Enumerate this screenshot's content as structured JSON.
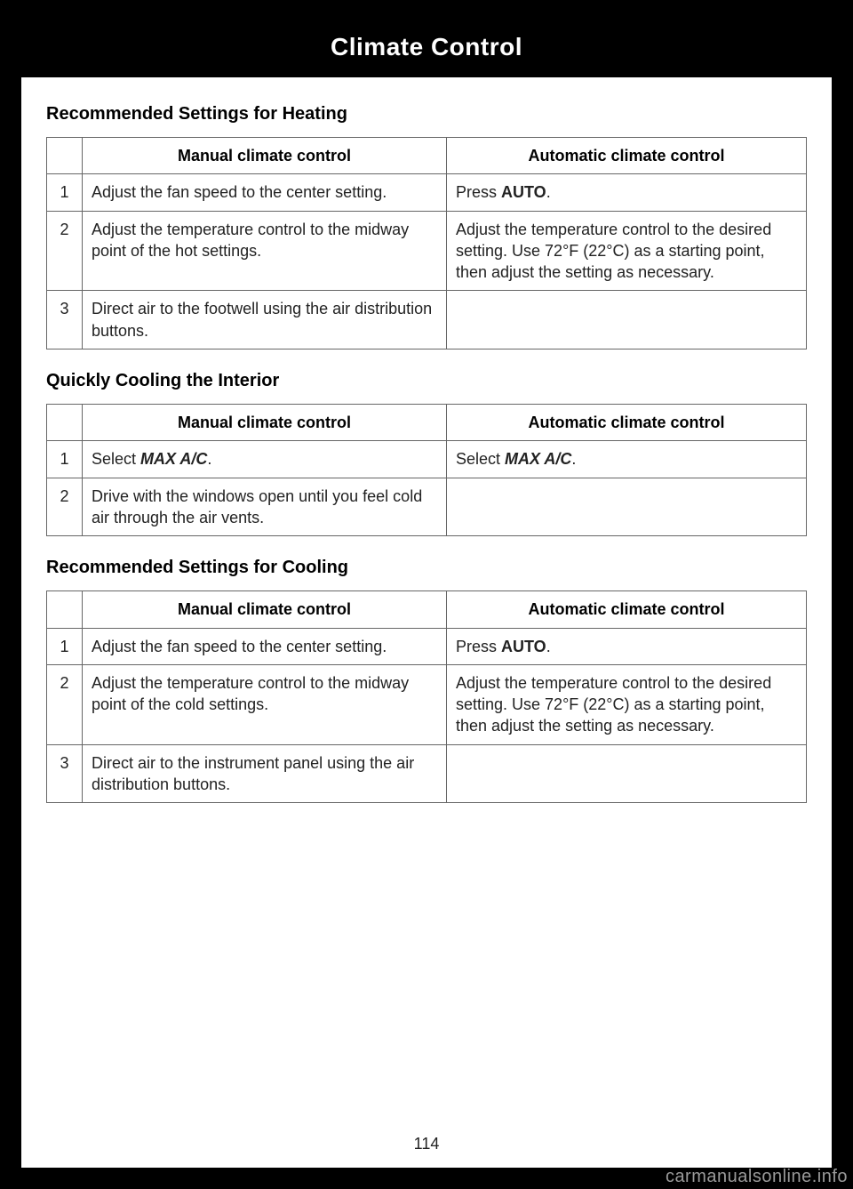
{
  "header": {
    "title": "Climate Control"
  },
  "page_number": "114",
  "watermark": "carmanualsonline.info",
  "columns": {
    "manual": "Manual climate control",
    "auto": "Automatic climate control"
  },
  "sections": [
    {
      "title": "Recommended Settings for Heating",
      "rows": [
        {
          "n": "1",
          "manual": "Adjust the fan speed to the center setting.",
          "auto_pre": "Press ",
          "auto_bold": "AUTO",
          "auto_post": "."
        },
        {
          "n": "2",
          "manual": "Adjust the temperature control to the midway point of the hot settings.",
          "auto": "Adjust the temperature control to the desired setting. Use 72°F (22°C) as a starting point, then adjust the setting as necessary."
        },
        {
          "n": "3",
          "manual": "Direct air to the footwell using the air distribution buttons.",
          "auto": ""
        }
      ]
    },
    {
      "title": "Quickly Cooling the Interior",
      "rows": [
        {
          "n": "1",
          "manual_pre": "Select ",
          "manual_bold": "MAX A/C",
          "manual_post": ".",
          "auto_pre": "Select ",
          "auto_bold": "MAX A/C",
          "auto_post": "."
        },
        {
          "n": "2",
          "manual": "Drive with the windows open until you feel cold air through the air vents.",
          "auto": ""
        }
      ]
    },
    {
      "title": "Recommended Settings for Cooling",
      "rows": [
        {
          "n": "1",
          "manual": "Adjust the fan speed to the center setting.",
          "auto_pre": "Press ",
          "auto_bold": "AUTO",
          "auto_post": "."
        },
        {
          "n": "2",
          "manual": "Adjust the temperature control to the midway point of the cold settings.",
          "auto": "Adjust the temperature control to the desired setting. Use 72°F (22°C) as a starting point, then adjust the setting as necessary."
        },
        {
          "n": "3",
          "manual": "Direct air to the instrument panel using the air distribution buttons.",
          "auto": ""
        }
      ]
    }
  ]
}
